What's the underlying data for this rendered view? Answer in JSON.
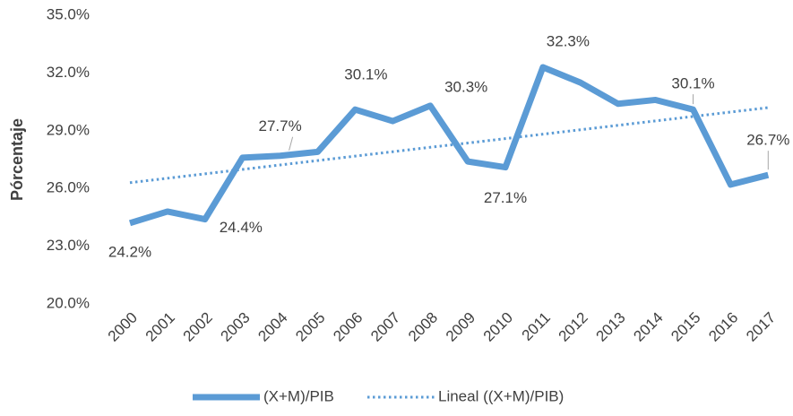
{
  "chart_data": {
    "type": "line",
    "y_label": "Pórcentaje",
    "categories": [
      "2000",
      "2001",
      "2002",
      "2003",
      "2004",
      "2005",
      "2006",
      "2007",
      "2008",
      "2009",
      "2010",
      "2011",
      "2012",
      "2013",
      "2014",
      "2015",
      "2016",
      "2017"
    ],
    "series": [
      {
        "name": "(X+M)/PIB",
        "color": "#5b9bd5",
        "style": "solid",
        "values": [
          24.2,
          24.8,
          24.4,
          27.6,
          27.7,
          27.9,
          30.1,
          29.5,
          30.3,
          27.4,
          27.1,
          32.3,
          31.5,
          30.4,
          30.6,
          30.1,
          26.2,
          26.7
        ],
        "value_labels": [
          "24.2%",
          null,
          "24.4%",
          null,
          "27.7%",
          null,
          "30.1%",
          null,
          "30.3%",
          null,
          "27.1%",
          "32.3%",
          null,
          null,
          null,
          "30.1%",
          null,
          "26.7%"
        ]
      },
      {
        "name": "Lineal ((X+M)/PIB)",
        "color": "#5b9bd5",
        "style": "dotted",
        "values": [
          26.3,
          26.53,
          26.76,
          26.99,
          27.22,
          27.45,
          27.68,
          27.91,
          28.14,
          28.36,
          28.59,
          28.82,
          29.05,
          29.28,
          29.51,
          29.74,
          29.97,
          30.2
        ]
      }
    ],
    "ylim": [
      20,
      35
    ],
    "yticks": [
      {
        "value": 20,
        "label": "20.0%"
      },
      {
        "value": 23,
        "label": "23.0%"
      },
      {
        "value": 26,
        "label": "26.0%"
      },
      {
        "value": 29,
        "label": "29.0%"
      },
      {
        "value": 32,
        "label": "32.0%"
      },
      {
        "value": 35,
        "label": "35.0%"
      }
    ],
    "grid": false,
    "legend": "bottom"
  }
}
